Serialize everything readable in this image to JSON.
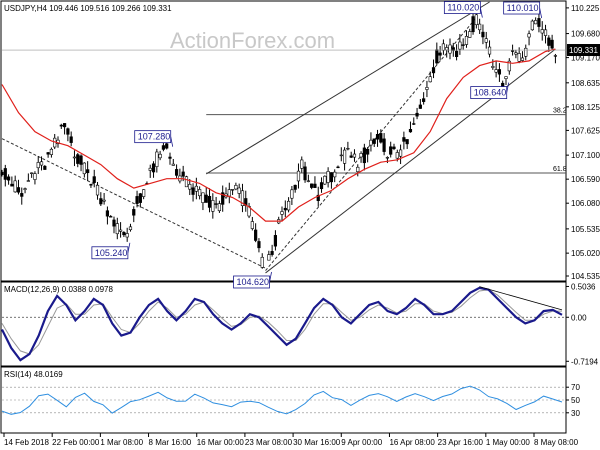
{
  "header": {
    "symbol_line": "USDJPY,H4  109.446 109.516 109.266 109.331",
    "watermark": "ActionForex.com"
  },
  "chart_data": [
    {
      "type": "candlestick",
      "title": "USDJPY,H4",
      "ohlc_last": {
        "open": 109.446,
        "high": 109.516,
        "low": 109.266,
        "close": 109.331
      },
      "current_price_label": "109.331",
      "y_ticks": [
        "110.225",
        "109.680",
        "109.170",
        "108.635",
        "108.125",
        "107.625",
        "107.100",
        "106.590",
        "106.080",
        "105.535",
        "105.020",
        "104.535"
      ],
      "x_ticks": [
        "14 Feb 2018",
        "22 Feb 00:00",
        "1 Mar 08:00",
        "8 Mar 16:00",
        "16 Mar 00:00",
        "23 Mar 08:00",
        "30 Mar 16:00",
        "9 Apr 00:00",
        "16 Apr 08:00",
        "23 Apr 16:00",
        "1 May 00:00",
        "8 May 08:00"
      ],
      "ylim": [
        104.45,
        110.35
      ],
      "annotations": [
        {
          "label": "110.020",
          "value": 110.02
        },
        {
          "label": "110.010",
          "value": 110.01
        },
        {
          "label": "108.640",
          "value": 108.64
        },
        {
          "label": "107.280",
          "value": 107.28
        },
        {
          "label": "105.240",
          "value": 105.24
        },
        {
          "label": "104.620",
          "value": 104.62
        }
      ],
      "fib_levels": [
        {
          "label": "38.2",
          "value": 107.96
        },
        {
          "label": "61.8",
          "value": 106.72
        }
      ],
      "price_path": [
        {
          "x": 0,
          "y": 106.85
        },
        {
          "x": 3,
          "y": 106.5
        },
        {
          "x": 6,
          "y": 106.2
        },
        {
          "x": 9,
          "y": 106.7
        },
        {
          "x": 13,
          "y": 106.9
        },
        {
          "x": 16,
          "y": 107.3
        },
        {
          "x": 19,
          "y": 107.7
        },
        {
          "x": 22,
          "y": 107.2
        },
        {
          "x": 25,
          "y": 106.8
        },
        {
          "x": 28,
          "y": 106.5
        },
        {
          "x": 31,
          "y": 106.1
        },
        {
          "x": 34,
          "y": 105.7
        },
        {
          "x": 37,
          "y": 105.3
        },
        {
          "x": 39,
          "y": 105.6
        },
        {
          "x": 41,
          "y": 106.1
        },
        {
          "x": 44,
          "y": 106.5
        },
        {
          "x": 47,
          "y": 107.0
        },
        {
          "x": 50,
          "y": 107.2
        },
        {
          "x": 53,
          "y": 106.8
        },
        {
          "x": 56,
          "y": 106.5
        },
        {
          "x": 59,
          "y": 106.3
        },
        {
          "x": 62,
          "y": 106.1
        },
        {
          "x": 65,
          "y": 106.0
        },
        {
          "x": 68,
          "y": 106.2
        },
        {
          "x": 71,
          "y": 106.4
        },
        {
          "x": 74,
          "y": 106.1
        },
        {
          "x": 77,
          "y": 105.4
        },
        {
          "x": 79,
          "y": 104.8
        },
        {
          "x": 80,
          "y": 104.62
        },
        {
          "x": 82,
          "y": 105.1
        },
        {
          "x": 85,
          "y": 105.8
        },
        {
          "x": 88,
          "y": 106.2
        },
        {
          "x": 91,
          "y": 106.9
        },
        {
          "x": 93,
          "y": 106.5
        },
        {
          "x": 96,
          "y": 106.3
        },
        {
          "x": 99,
          "y": 106.6
        },
        {
          "x": 102,
          "y": 106.9
        },
        {
          "x": 105,
          "y": 107.1
        },
        {
          "x": 108,
          "y": 106.9
        },
        {
          "x": 111,
          "y": 107.2
        },
        {
          "x": 114,
          "y": 107.5
        },
        {
          "x": 117,
          "y": 107.2
        },
        {
          "x": 120,
          "y": 107.1
        },
        {
          "x": 123,
          "y": 107.4
        },
        {
          "x": 126,
          "y": 107.9
        },
        {
          "x": 129,
          "y": 108.6
        },
        {
          "x": 132,
          "y": 109.2
        },
        {
          "x": 135,
          "y": 109.5
        },
        {
          "x": 138,
          "y": 109.3
        },
        {
          "x": 141,
          "y": 109.6
        },
        {
          "x": 144,
          "y": 110.02
        },
        {
          "x": 146,
          "y": 109.7
        },
        {
          "x": 148,
          "y": 109.3
        },
        {
          "x": 150,
          "y": 108.9
        },
        {
          "x": 152,
          "y": 108.64
        },
        {
          "x": 154,
          "y": 109.0
        },
        {
          "x": 156,
          "y": 109.3
        },
        {
          "x": 158,
          "y": 109.1
        },
        {
          "x": 160,
          "y": 109.6
        },
        {
          "x": 162,
          "y": 110.01
        },
        {
          "x": 164,
          "y": 109.8
        },
        {
          "x": 166,
          "y": 109.45
        },
        {
          "x": 168,
          "y": 109.33
        }
      ],
      "sma_path": [
        {
          "x": 0,
          "y": 108.6
        },
        {
          "x": 5,
          "y": 108.0
        },
        {
          "x": 10,
          "y": 107.6
        },
        {
          "x": 15,
          "y": 107.4
        },
        {
          "x": 20,
          "y": 107.3
        },
        {
          "x": 25,
          "y": 107.1
        },
        {
          "x": 30,
          "y": 106.9
        },
        {
          "x": 35,
          "y": 106.6
        },
        {
          "x": 40,
          "y": 106.4
        },
        {
          "x": 45,
          "y": 106.5
        },
        {
          "x": 50,
          "y": 106.6
        },
        {
          "x": 55,
          "y": 106.6
        },
        {
          "x": 60,
          "y": 106.5
        },
        {
          "x": 65,
          "y": 106.3
        },
        {
          "x": 70,
          "y": 106.2
        },
        {
          "x": 75,
          "y": 106.0
        },
        {
          "x": 80,
          "y": 105.7
        },
        {
          "x": 85,
          "y": 105.7
        },
        {
          "x": 90,
          "y": 106.0
        },
        {
          "x": 95,
          "y": 106.2
        },
        {
          "x": 100,
          "y": 106.35
        },
        {
          "x": 105,
          "y": 106.6
        },
        {
          "x": 110,
          "y": 106.8
        },
        {
          "x": 115,
          "y": 106.95
        },
        {
          "x": 120,
          "y": 107.0
        },
        {
          "x": 125,
          "y": 107.15
        },
        {
          "x": 130,
          "y": 107.6
        },
        {
          "x": 135,
          "y": 108.3
        },
        {
          "x": 140,
          "y": 108.75
        },
        {
          "x": 145,
          "y": 109.0
        },
        {
          "x": 150,
          "y": 109.1
        },
        {
          "x": 155,
          "y": 109.05
        },
        {
          "x": 160,
          "y": 109.1
        },
        {
          "x": 165,
          "y": 109.3
        },
        {
          "x": 168,
          "y": 109.35
        }
      ],
      "channel_lines": [
        {
          "x1": 80,
          "y1": 104.6,
          "x2": 168,
          "y2": 109.35,
          "style": "solid"
        },
        {
          "x1": 62,
          "y1": 106.7,
          "x2": 148,
          "y2": 110.35,
          "style": "solid"
        },
        {
          "x1": 80,
          "y1": 104.65,
          "x2": 144,
          "y2": 110.02,
          "style": "dashed"
        },
        {
          "x1": 0,
          "y1": 107.45,
          "x2": 80,
          "y2": 104.7,
          "style": "dashed"
        }
      ],
      "x_range": [
        0,
        170
      ]
    },
    {
      "type": "line",
      "title": "MACD(12,26,9) 0.0388 0.0978",
      "y_ticks": [
        "0.5036",
        "0.00",
        "-0.7194"
      ],
      "ylim": [
        -0.78,
        0.56
      ],
      "series": [
        {
          "name": "MACD",
          "values": [
            -0.2,
            -0.5,
            -0.7,
            -0.6,
            -0.3,
            0.1,
            0.35,
            0.2,
            -0.05,
            0.1,
            0.3,
            0.2,
            -0.1,
            -0.3,
            -0.25,
            0.0,
            0.2,
            0.3,
            0.1,
            -0.05,
            0.1,
            0.3,
            0.25,
            0.05,
            -0.1,
            -0.2,
            -0.1,
            0.05,
            0.0,
            -0.15,
            -0.3,
            -0.45,
            -0.35,
            -0.1,
            0.15,
            0.3,
            0.2,
            0.0,
            -0.1,
            0.05,
            0.2,
            0.25,
            0.1,
            0.05,
            0.15,
            0.3,
            0.2,
            0.05,
            0.05,
            0.1,
            0.25,
            0.4,
            0.48,
            0.45,
            0.3,
            0.15,
            0.0,
            -0.1,
            -0.05,
            0.1,
            0.12,
            0.04
          ]
        },
        {
          "name": "Signal",
          "values": [
            -0.1,
            -0.35,
            -0.55,
            -0.6,
            -0.45,
            -0.15,
            0.15,
            0.22,
            0.05,
            0.05,
            0.2,
            0.22,
            0.0,
            -0.2,
            -0.25,
            -0.1,
            0.1,
            0.25,
            0.15,
            0.0,
            0.05,
            0.2,
            0.25,
            0.12,
            -0.02,
            -0.15,
            -0.12,
            0.0,
            0.02,
            -0.08,
            -0.22,
            -0.38,
            -0.38,
            -0.2,
            0.05,
            0.22,
            0.22,
            0.08,
            -0.05,
            0.0,
            0.12,
            0.2,
            0.15,
            0.07,
            0.1,
            0.22,
            0.22,
            0.1,
            0.06,
            0.08,
            0.18,
            0.32,
            0.43,
            0.45,
            0.36,
            0.22,
            0.08,
            -0.05,
            -0.05,
            0.05,
            0.1,
            0.1
          ]
        }
      ],
      "trendline": {
        "x1": 52,
        "y1": 0.5,
        "x2": 61,
        "y2": 0.12
      }
    },
    {
      "type": "line",
      "title": "RSI(14) 48.0169",
      "y_ticks": [
        "70",
        "50",
        "30"
      ],
      "ylim": [
        0,
        100
      ],
      "series": [
        {
          "name": "RSI",
          "values": [
            35,
            30,
            28,
            40,
            55,
            60,
            48,
            42,
            52,
            58,
            50,
            40,
            32,
            38,
            45,
            50,
            55,
            60,
            52,
            45,
            50,
            58,
            55,
            48,
            42,
            38,
            45,
            50,
            47,
            40,
            35,
            30,
            35,
            45,
            58,
            62,
            55,
            48,
            44,
            50,
            58,
            60,
            54,
            50,
            56,
            62,
            58,
            52,
            55,
            60,
            66,
            70,
            64,
            58,
            50,
            42,
            38,
            40,
            46,
            55,
            52,
            48
          ]
        }
      ]
    }
  ]
}
